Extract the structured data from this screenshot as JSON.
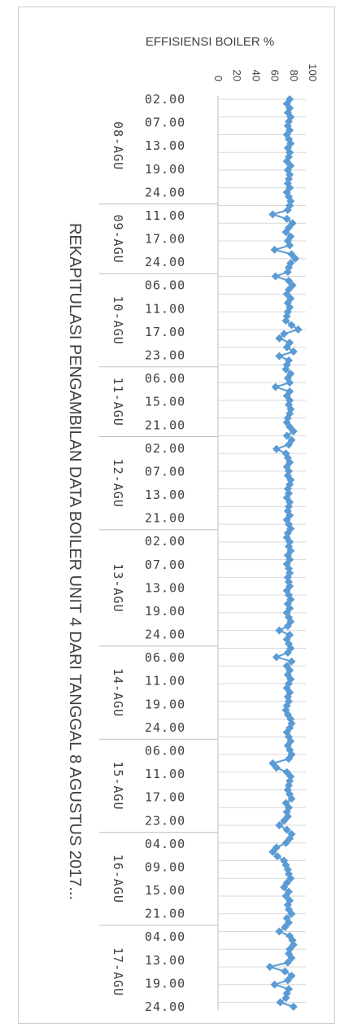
{
  "chart_data": {
    "type": "line",
    "title": "REKAPITULASI PENGAMBILAN DATA BOILER UNIT 4 DARI TANGGAL 8 AGUSTUS 2017...",
    "series": [
      {
        "name": "EFFISIENSI BOILER %",
        "color": "#5b9bd5",
        "values": [
          76,
          73,
          76,
          74,
          77,
          75,
          74,
          76,
          73,
          75,
          77,
          74,
          76,
          75,
          73,
          77,
          74,
          76,
          75,
          74,
          76,
          73,
          75,
          77,
          76,
          74,
          58,
          73,
          79,
          75,
          72,
          77,
          74,
          76,
          60,
          78,
          82,
          77,
          75,
          74,
          61,
          75,
          79,
          75,
          73,
          77,
          74,
          76,
          74,
          73,
          72,
          78,
          85,
          70,
          65,
          76,
          73,
          80,
          65,
          75,
          73,
          72,
          77,
          74,
          76,
          61,
          76,
          73,
          76,
          75,
          77,
          76,
          74,
          73,
          76,
          80,
          73,
          78,
          75,
          62,
          72,
          74,
          76,
          73,
          75,
          74,
          77,
          76,
          74,
          75,
          73,
          76,
          75,
          74,
          76,
          73,
          75,
          77,
          74,
          73,
          76,
          75,
          77,
          74,
          76,
          73,
          75,
          76,
          74,
          75,
          76,
          73,
          75,
          77,
          74,
          76,
          73,
          75,
          77,
          74,
          65,
          76,
          73,
          75,
          77,
          74,
          62,
          78,
          73,
          76,
          74,
          77,
          75,
          73,
          76,
          74,
          75,
          73,
          72,
          74,
          77,
          78,
          76,
          73,
          75,
          77,
          74,
          76,
          78,
          75,
          58,
          62,
          73,
          77,
          76,
          75,
          74,
          76,
          78,
          72,
          75,
          73,
          74,
          70,
          65,
          73,
          78,
          76,
          72,
          62,
          58,
          63,
          70,
          72,
          74,
          75,
          77,
          73,
          70,
          75,
          72,
          76,
          74,
          75,
          78,
          73,
          75,
          71,
          65,
          76,
          79,
          80,
          76,
          75,
          78,
          74,
          55,
          71,
          78,
          74,
          60,
          75,
          73,
          72,
          66,
          80
        ]
      }
    ],
    "y_axis": {
      "ticks": [
        "0",
        "20",
        "40",
        "60",
        "80",
        "100"
      ],
      "range": [
        0,
        100
      ]
    },
    "x_axis": {
      "groups": [
        {
          "date": "08-AGU",
          "times": [
            "02.00",
            "07.00",
            "13.00",
            "19.00",
            "24.00"
          ]
        },
        {
          "date": "09-AGU",
          "times": [
            "11.00",
            "17.00",
            "24.00"
          ]
        },
        {
          "date": "10-AGU",
          "times": [
            "06.00",
            "11.00",
            "17.00",
            "23.00"
          ]
        },
        {
          "date": "11-AGU",
          "times": [
            "06.00",
            "15.00",
            "21.00"
          ]
        },
        {
          "date": "12-AGU",
          "times": [
            "02.00",
            "07.00",
            "13.00",
            "21.00"
          ]
        },
        {
          "date": "13-AGU",
          "times": [
            "02.00",
            "07.00",
            "13.00",
            "19.00",
            "24.00"
          ]
        },
        {
          "date": "14-AGU",
          "times": [
            "06.00",
            "11.00",
            "19.00",
            "24.00"
          ]
        },
        {
          "date": "15-AGU",
          "times": [
            "06.00",
            "11.00",
            "17.00",
            "23.00"
          ]
        },
        {
          "date": "16-AGU",
          "times": [
            "04.00",
            "09.00",
            "15.00",
            "21.00"
          ]
        },
        {
          "date": "17-AGU",
          "times": [
            "04.00",
            "13.00",
            "19.00",
            "24.00"
          ]
        }
      ]
    },
    "grid": true,
    "orientation": "rotated-90"
  }
}
